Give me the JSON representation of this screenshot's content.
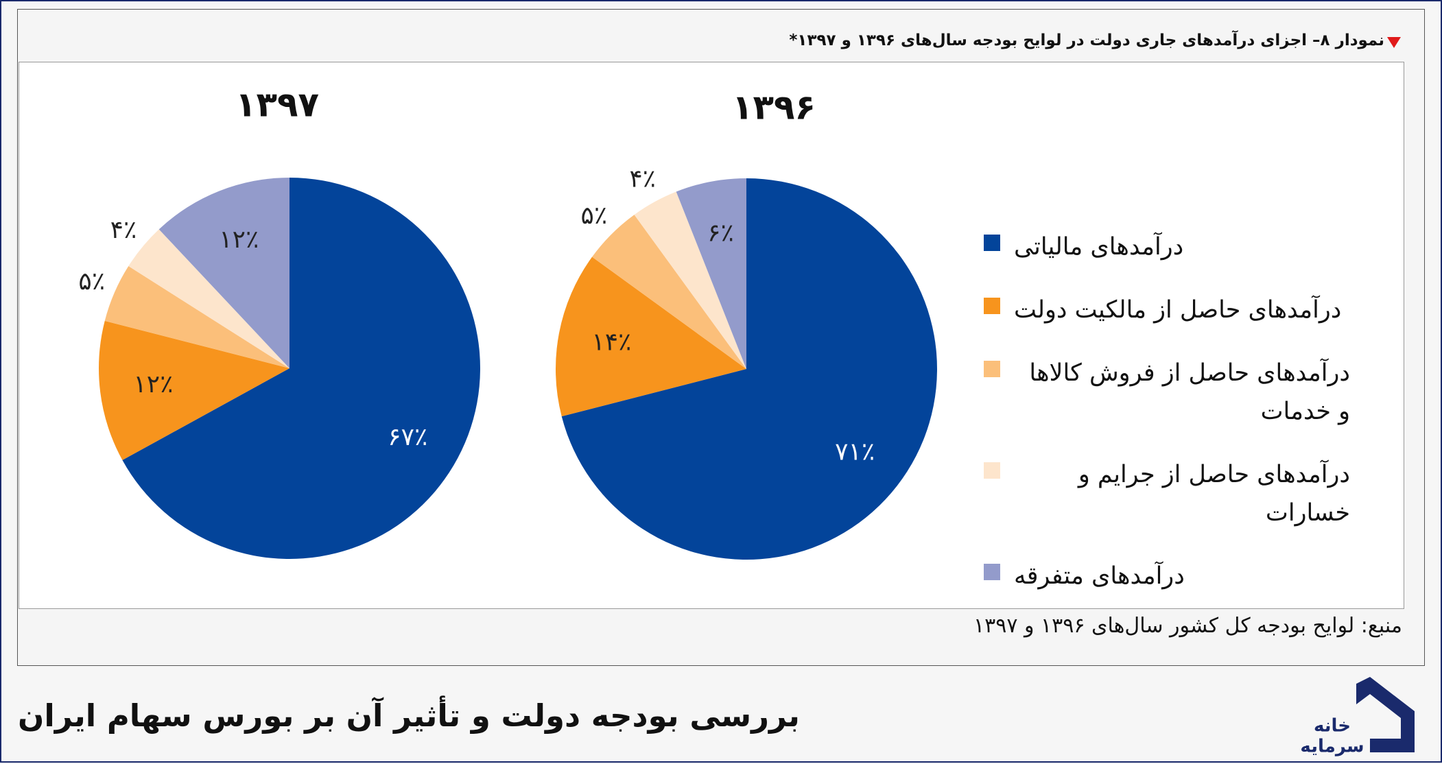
{
  "header": "نمودار ۸– اجزای درآمدهای جاری دولت در لوایح بودجه سال‌های ۱۳۹۶ و ۱۳۹۷*",
  "source": "منبع: لوایح بودجه کل کشور سال‌های ۱۳۹۶ و ۱۳۹۷",
  "footer_title": "بررسی بودجه دولت و تأثیر آن بر بورس سهام ایران",
  "logo_text": [
    "خانه",
    "سرمایه"
  ],
  "chart_data": [
    {
      "type": "pie",
      "title": "۱۳۹۷",
      "categories": [
        "درآمدهای مالیاتی",
        "درآمدهای حاصل از مالکیت دولت",
        "درآمدهای حاصل از فروش کالاها و خدمات",
        "درآمدهای حاصل از جرایم و خسارات",
        "درآمدهای متفرقه"
      ],
      "values": [
        67,
        12,
        5,
        4,
        12
      ],
      "value_labels": [
        "۶۷٪",
        "۱۲٪",
        "۵٪",
        "۴٪",
        "۱۲٪"
      ],
      "colors": [
        "#03449a",
        "#f7941d",
        "#fbbf7a",
        "#fde5cc",
        "#939bcb"
      ]
    },
    {
      "type": "pie",
      "title": "۱۳۹۶",
      "categories": [
        "درآمدهای مالیاتی",
        "درآمدهای حاصل از مالکیت دولت",
        "درآمدهای حاصل از فروش کالاها و خدمات",
        "درآمدهای حاصل از جرایم و خسارات",
        "درآمدهای متفرقه"
      ],
      "values": [
        71,
        14,
        5,
        4,
        6
      ],
      "value_labels": [
        "۷۱٪",
        "۱۴٪",
        "۵٪",
        "۴٪",
        "۶٪"
      ],
      "colors": [
        "#03449a",
        "#f7941d",
        "#fbbf7a",
        "#fde5cc",
        "#939bcb"
      ]
    }
  ]
}
